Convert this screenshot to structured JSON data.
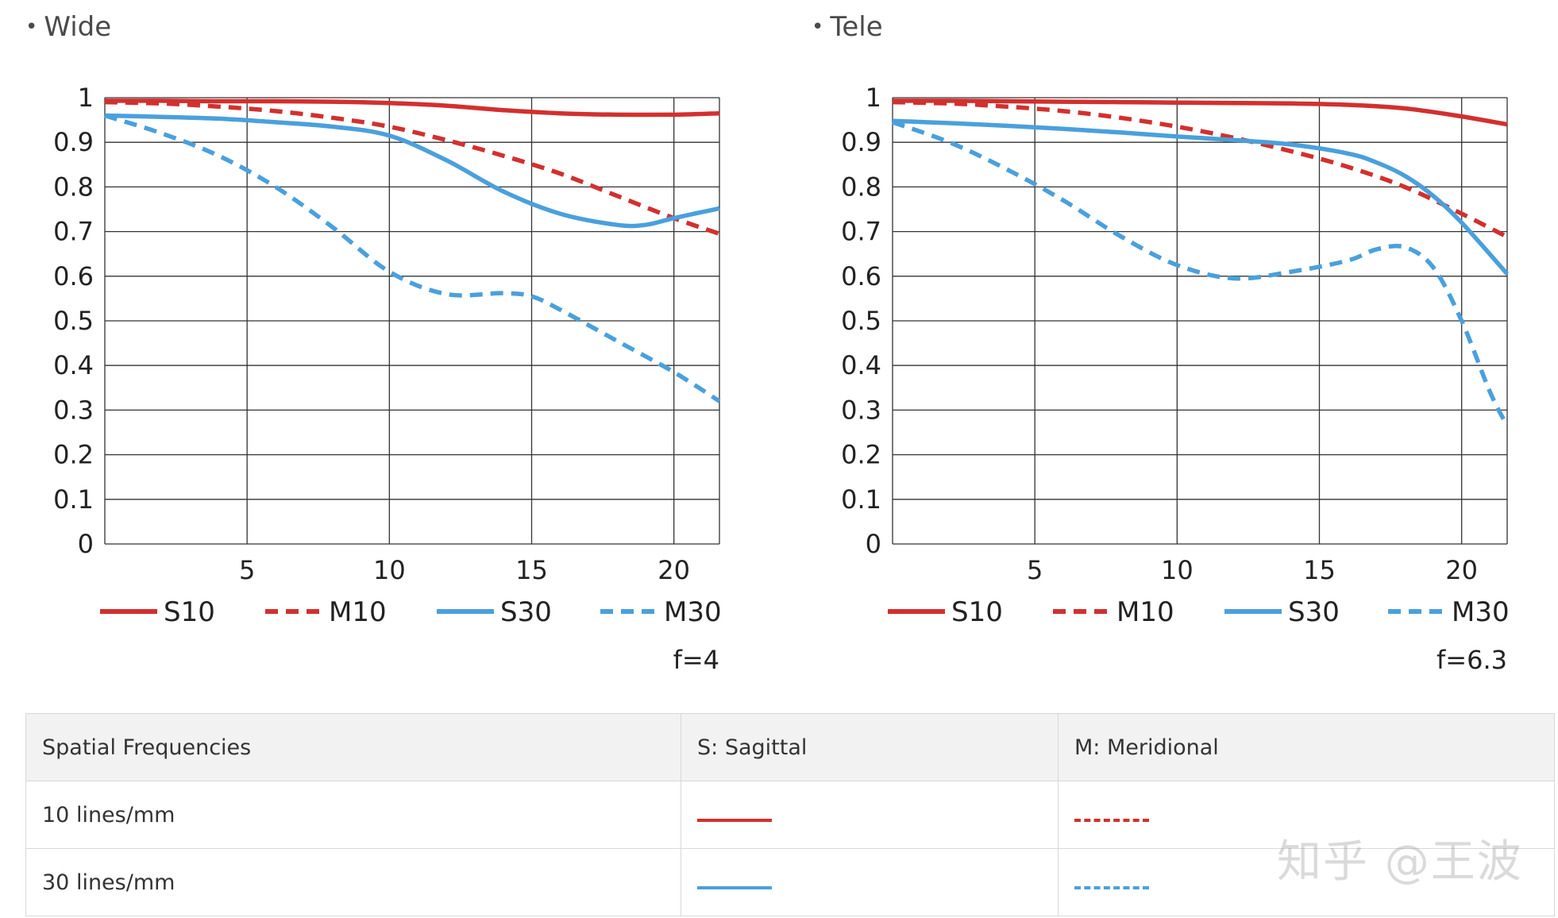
{
  "colors": {
    "red": "#d2302e",
    "blue": "#4aa0dc",
    "grid": "#333333"
  },
  "chart_data": [
    {
      "type": "line",
      "title": "Wide",
      "aperture": "f=4",
      "xlim": [
        0,
        21.6
      ],
      "ylim": [
        0,
        1
      ],
      "x_ticks": [
        "5",
        "10",
        "15",
        "20"
      ],
      "y_ticks": [
        "0",
        "0.1",
        "0.2",
        "0.3",
        "0.4",
        "0.5",
        "0.6",
        "0.7",
        "0.8",
        "0.9",
        "1"
      ],
      "grid": true,
      "legend_position": "bottom",
      "series": [
        {
          "name": "S10",
          "color": "red",
          "dashed": false,
          "x": [
            0,
            2,
            4,
            6,
            8,
            10,
            12,
            14,
            16,
            18,
            20,
            21.6
          ],
          "y": [
            0.993,
            0.993,
            0.992,
            0.992,
            0.991,
            0.988,
            0.982,
            0.972,
            0.965,
            0.962,
            0.962,
            0.965
          ]
        },
        {
          "name": "M10",
          "color": "red",
          "dashed": true,
          "x": [
            0,
            2,
            4,
            6,
            8,
            10,
            12,
            14,
            16,
            18,
            20,
            21.6
          ],
          "y": [
            0.99,
            0.987,
            0.98,
            0.97,
            0.955,
            0.935,
            0.905,
            0.87,
            0.83,
            0.78,
            0.73,
            0.695
          ]
        },
        {
          "name": "S30",
          "color": "blue",
          "dashed": false,
          "x": [
            0,
            2,
            4,
            6,
            8,
            10,
            12,
            14,
            16,
            18,
            19,
            20,
            21.6
          ],
          "y": [
            0.96,
            0.957,
            0.953,
            0.945,
            0.935,
            0.915,
            0.86,
            0.79,
            0.74,
            0.715,
            0.715,
            0.73,
            0.752
          ]
        },
        {
          "name": "M30",
          "color": "blue",
          "dashed": true,
          "x": [
            0,
            2,
            4,
            6,
            8,
            10,
            12,
            14,
            15,
            16,
            18,
            20,
            21.6
          ],
          "y": [
            0.96,
            0.92,
            0.87,
            0.8,
            0.71,
            0.61,
            0.56,
            0.562,
            0.555,
            0.525,
            0.455,
            0.385,
            0.32
          ]
        }
      ]
    },
    {
      "type": "line",
      "title": "Tele",
      "aperture": "f=6.3",
      "xlim": [
        0,
        21.6
      ],
      "ylim": [
        0,
        1
      ],
      "x_ticks": [
        "5",
        "10",
        "15",
        "20"
      ],
      "y_ticks": [
        "0",
        "0.1",
        "0.2",
        "0.3",
        "0.4",
        "0.5",
        "0.6",
        "0.7",
        "0.8",
        "0.9",
        "1"
      ],
      "grid": true,
      "legend_position": "bottom",
      "series": [
        {
          "name": "S10",
          "color": "red",
          "dashed": false,
          "x": [
            0,
            2,
            4,
            6,
            8,
            10,
            12,
            14,
            16,
            18,
            20,
            21.6
          ],
          "y": [
            0.993,
            0.993,
            0.992,
            0.991,
            0.99,
            0.989,
            0.988,
            0.987,
            0.984,
            0.976,
            0.958,
            0.94
          ]
        },
        {
          "name": "M10",
          "color": "red",
          "dashed": true,
          "x": [
            0,
            2,
            4,
            6,
            8,
            10,
            12,
            14,
            16,
            18,
            20,
            21.6
          ],
          "y": [
            0.99,
            0.987,
            0.98,
            0.97,
            0.955,
            0.935,
            0.91,
            0.88,
            0.845,
            0.8,
            0.74,
            0.688
          ]
        },
        {
          "name": "S30",
          "color": "blue",
          "dashed": false,
          "x": [
            0,
            2,
            4,
            6,
            8,
            10,
            12,
            14,
            16,
            17,
            18,
            19,
            20,
            21.6
          ],
          "y": [
            0.948,
            0.943,
            0.937,
            0.93,
            0.922,
            0.913,
            0.905,
            0.895,
            0.875,
            0.855,
            0.825,
            0.78,
            0.72,
            0.605
          ]
        },
        {
          "name": "M30",
          "color": "blue",
          "dashed": true,
          "x": [
            0,
            2,
            4,
            6,
            8,
            10,
            12,
            14,
            16,
            17,
            18,
            19,
            20,
            21,
            21.6
          ],
          "y": [
            0.945,
            0.9,
            0.84,
            0.77,
            0.69,
            0.625,
            0.595,
            0.61,
            0.635,
            0.66,
            0.665,
            0.62,
            0.5,
            0.34,
            0.265
          ]
        }
      ]
    }
  ],
  "table": {
    "header": [
      "Spatial Frequencies",
      "S: Sagittal",
      "M: Meridional"
    ],
    "rows": [
      {
        "label": "10 lines/mm",
        "sagittal_color": "red",
        "meridional_color": "red"
      },
      {
        "label": "30 lines/mm",
        "sagittal_color": "blue",
        "meridional_color": "blue"
      }
    ]
  },
  "watermark": "知乎 @王波"
}
